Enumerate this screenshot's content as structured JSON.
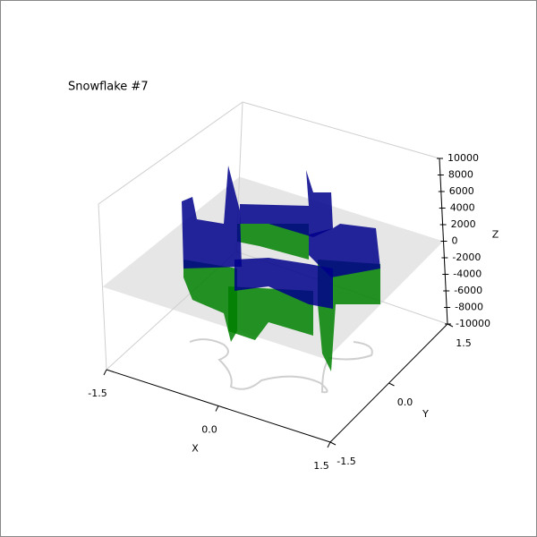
{
  "chart_data": {
    "type": "surface3d",
    "title": "Snowflake #7",
    "xlabel": "X",
    "ylabel": "Y",
    "zlabel": "Z",
    "xlim": [
      -1.5,
      1.5
    ],
    "ylim": [
      -1.5,
      1.5
    ],
    "zlim": [
      -10000,
      10000
    ],
    "xticks": [
      -1.5,
      {
        "value": 0,
        "label": "0.0"
      },
      1.5
    ],
    "yticks": [
      -1.5,
      {
        "value": 0,
        "label": "0.0"
      },
      1.5
    ],
    "zticks": [
      -10000,
      -8000,
      -6000,
      -4000,
      -2000,
      0,
      2000,
      4000,
      6000,
      8000,
      10000
    ],
    "grid": false,
    "upper_color": "#00008b",
    "lower_color": "#008000"
  }
}
